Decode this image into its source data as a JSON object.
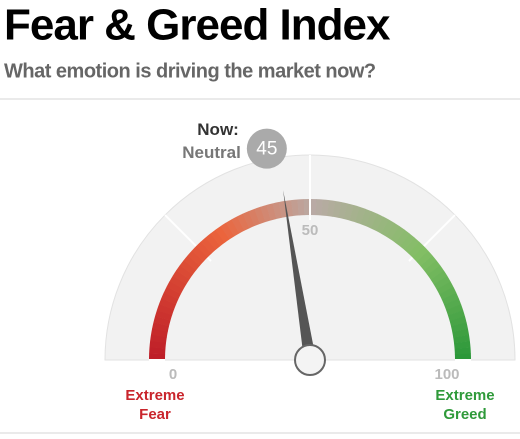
{
  "chart_data": {
    "type": "gauge",
    "title": "Fear & Greed Index",
    "subtitle": "What emotion is driving the market now?",
    "value": 45,
    "value_heading": "Now:",
    "value_caption": "Neutral",
    "range": [
      0,
      100
    ],
    "ticks": [
      0,
      50,
      100
    ],
    "low_label": [
      "Extreme",
      "Fear"
    ],
    "high_label": [
      "Extreme",
      "Greed"
    ],
    "low_color": "#c9252c",
    "high_color": "#2f9a3a"
  }
}
